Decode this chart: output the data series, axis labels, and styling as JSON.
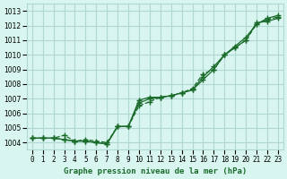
{
  "title": "Graphe pression niveau de la mer (hPa)",
  "bg_color": "#d8f5f0",
  "grid_color": "#b0d8d0",
  "line_color": "#1a6b2a",
  "x_labels": [
    "0",
    "1",
    "2",
    "3",
    "4",
    "5",
    "6",
    "7",
    "8",
    "9",
    "10",
    "11",
    "12",
    "13",
    "14",
    "15",
    "16",
    "17",
    "18",
    "19",
    "20",
    "21",
    "22",
    "23"
  ],
  "ylim": [
    1003.5,
    1013.5
  ],
  "yticks": [
    1004,
    1005,
    1006,
    1007,
    1008,
    1009,
    1010,
    1011,
    1012,
    1013
  ],
  "series1": [
    1004.3,
    1004.3,
    1004.3,
    1004.2,
    1004.1,
    1004.1,
    1004.0,
    1003.9,
    1005.1,
    1005.1,
    1006.7,
    1007.0,
    1007.1,
    1007.2,
    1007.4,
    1007.6,
    1008.3,
    1009.0,
    1010.0,
    1010.6,
    1011.2,
    1012.1,
    1012.5,
    1012.7
  ],
  "series2": [
    1004.3,
    1004.3,
    1004.3,
    1004.2,
    1004.1,
    1004.1,
    1004.0,
    1003.9,
    1005.1,
    1005.1,
    1006.9,
    1007.1,
    1007.1,
    1007.2,
    1007.4,
    1007.6,
    1008.5,
    1009.2,
    1010.0,
    1010.5,
    1011.0,
    1012.2,
    1012.3,
    1012.5
  ],
  "series3": [
    1004.3,
    1004.3,
    1004.3,
    1004.5,
    1004.1,
    1004.2,
    1004.1,
    1004.0,
    1005.1,
    1005.1,
    1006.5,
    1006.8,
    1007.1,
    1007.2,
    1007.4,
    1007.7,
    1008.7,
    1009.0,
    1010.0,
    1010.5,
    1011.0,
    1012.1,
    1012.4,
    1012.6
  ]
}
